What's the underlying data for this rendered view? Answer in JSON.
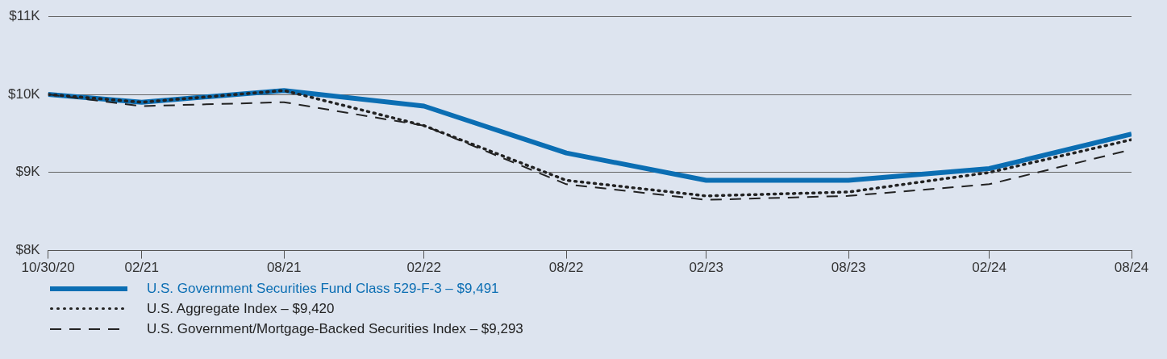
{
  "chart_data": {
    "type": "line",
    "x": [
      "2020-10-30",
      "2021-02-28",
      "2021-08-31",
      "2022-02-28",
      "2022-08-31",
      "2023-02-28",
      "2023-08-31",
      "2024-02-29",
      "2024-08-31"
    ],
    "series": [
      {
        "name": "U.S. Government Securities Fund Class 529-F-3 – $9,491",
        "color": "#0b6eb3",
        "line_style": "solid",
        "values": [
          10000,
          9900,
          10050,
          9850,
          9250,
          8900,
          8900,
          9050,
          9491
        ]
      },
      {
        "name": "U.S. Aggregate Index – $9,420",
        "color": "#222222",
        "line_style": "dotted",
        "values": [
          10000,
          9900,
          10050,
          9600,
          8900,
          8700,
          8750,
          9000,
          9420
        ]
      },
      {
        "name": "U.S. Government/Mortgage-Backed Securities Index – $9,293",
        "color": "#222222",
        "line_style": "dashed",
        "values": [
          10000,
          9850,
          9900,
          9600,
          8850,
          8650,
          8700,
          8850,
          9293
        ]
      }
    ],
    "xlim": [
      "2020-10-30",
      "2024-08-31"
    ],
    "xticks": [
      {
        "value": "2020-10-30",
        "label": "10/30/20"
      },
      {
        "value": "2021-02-28",
        "label": "02/21"
      },
      {
        "value": "2021-08-31",
        "label": "08/21"
      },
      {
        "value": "2022-02-28",
        "label": "02/22"
      },
      {
        "value": "2022-08-31",
        "label": "08/22"
      },
      {
        "value": "2023-02-28",
        "label": "02/23"
      },
      {
        "value": "2023-08-31",
        "label": "08/23"
      },
      {
        "value": "2024-02-29",
        "label": "02/24"
      },
      {
        "value": "2024-08-31",
        "label": "08/24"
      }
    ],
    "ylim": [
      8000,
      11000
    ],
    "yticks": [
      {
        "value": 8000,
        "label": "$8K"
      },
      {
        "value": 9000,
        "label": "$9K"
      },
      {
        "value": 10000,
        "label": "$10K"
      },
      {
        "value": 11000,
        "label": "$11K"
      }
    ],
    "grid": "y",
    "legend": "bottom left",
    "marker": "none"
  }
}
